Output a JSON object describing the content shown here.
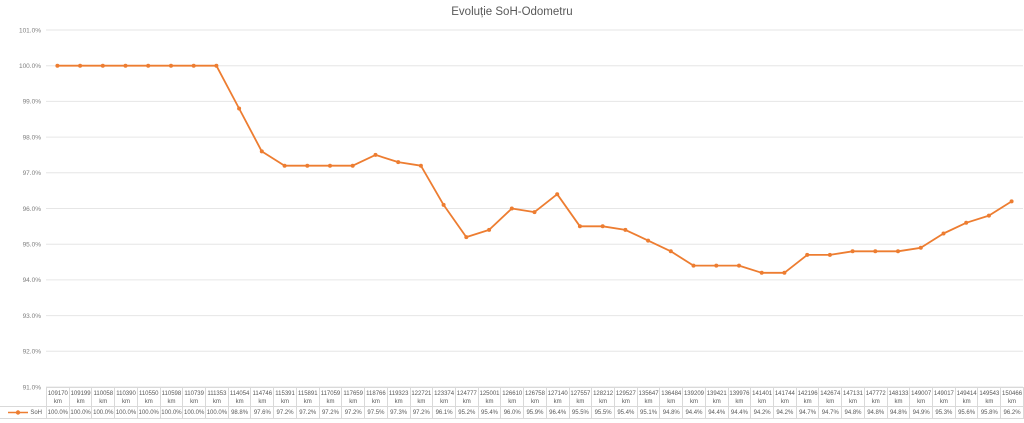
{
  "title": "Evoluție SoH-Odometru",
  "colors": {
    "series": "#ED7D31",
    "gridline": "#E6E6E6",
    "axis_text": "#7F7F7F",
    "table_text": "#595959",
    "table_border": "#D9D9D9",
    "title_text": "#595959",
    "background": "#FFFFFF"
  },
  "chart_data": {
    "type": "line",
    "title": "Evoluție SoH-Odometru",
    "x_unit": "km",
    "x": [
      109170,
      109199,
      110058,
      110390,
      110550,
      110598,
      110739,
      111353,
      114054,
      114746,
      115391,
      115891,
      117059,
      117659,
      118766,
      119323,
      122721,
      123374,
      124777,
      125001,
      126610,
      126758,
      127140,
      127557,
      128212,
      129527,
      135647,
      136484,
      139209,
      139421,
      139976,
      141401,
      141744,
      142196,
      142674,
      147131,
      147772,
      148133,
      149007,
      149017,
      149414,
      149543,
      150466
    ],
    "series": [
      {
        "name": "SoH",
        "values": [
          100.0,
          100.0,
          100.0,
          100.0,
          100.0,
          100.0,
          100.0,
          100.0,
          98.8,
          97.6,
          97.2,
          97.2,
          97.2,
          97.2,
          97.5,
          97.3,
          97.2,
          96.1,
          95.2,
          95.4,
          96.0,
          95.9,
          96.4,
          95.5,
          95.5,
          95.4,
          95.1,
          94.8,
          94.4,
          94.4,
          94.4,
          94.2,
          94.2,
          94.7,
          94.7,
          94.8,
          94.8,
          94.8,
          94.9,
          95.3,
          95.6,
          95.8,
          96.2
        ]
      }
    ],
    "ylim": [
      91.0,
      101.0
    ],
    "y_tick_step": 1.0,
    "y_tick_labels": [
      "101.0%",
      "100.0%",
      "99.0%",
      "98.0%",
      "97.0%",
      "96.0%",
      "95.0%",
      "94.0%",
      "93.0%",
      "92.0%",
      "91.0%"
    ],
    "grid": "horizontal",
    "legend_position": "data-table-left"
  }
}
